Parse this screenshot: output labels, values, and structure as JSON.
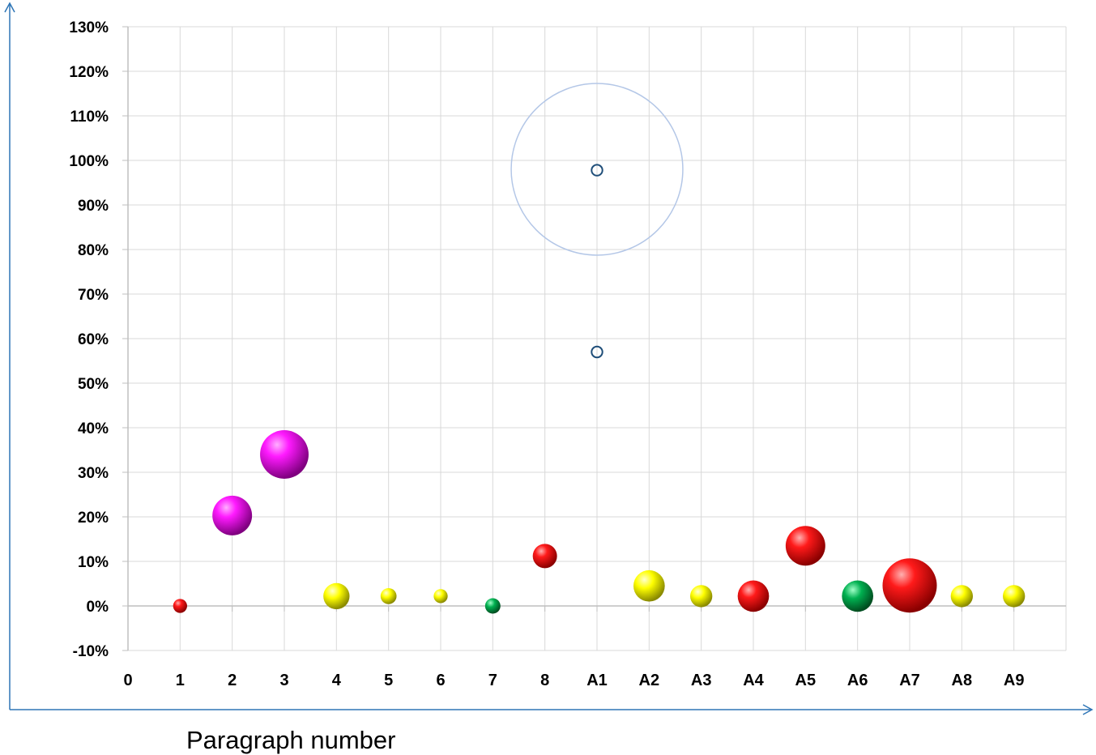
{
  "chart_data": {
    "type": "bubble",
    "xlabel": "Paragraph number",
    "ylabel": "",
    "x_tick_labels": [
      "0",
      "1",
      "2",
      "3",
      "4",
      "5",
      "6",
      "7",
      "8",
      "A1",
      "A2",
      "A3",
      "A4",
      "A5",
      "A6",
      "A7",
      "A8",
      "A9"
    ],
    "y_tick_labels": [
      "-10%",
      "0%",
      "10%",
      "20%",
      "30%",
      "40%",
      "50%",
      "60%",
      "70%",
      "80%",
      "90%",
      "100%",
      "110%",
      "120%",
      "130%"
    ],
    "ylim": [
      -10,
      130
    ],
    "y_unit": "%",
    "grid": true,
    "colors": {
      "red": "#e80000",
      "magenta": "#e000e0",
      "yellow": "#f2f200",
      "green": "#00a050",
      "outline": "#1f4e79",
      "faint_outline": "#b4c7e7",
      "axis_arrow": "#2e75b6",
      "grid": "#d9d9d9"
    },
    "points": [
      {
        "x": "1",
        "y": 0,
        "size": 1,
        "color": "red"
      },
      {
        "x": "2",
        "y": 20.3,
        "size": 8,
        "color": "magenta"
      },
      {
        "x": "3",
        "y": 34,
        "size": 12,
        "color": "magenta"
      },
      {
        "x": "4",
        "y": 2.2,
        "size": 3.5,
        "color": "yellow"
      },
      {
        "x": "5",
        "y": 2.2,
        "size": 1.3,
        "color": "yellow"
      },
      {
        "x": "6",
        "y": 2.2,
        "size": 1,
        "color": "yellow"
      },
      {
        "x": "7",
        "y": 0,
        "size": 1.2,
        "color": "green"
      },
      {
        "x": "8",
        "y": 11.2,
        "size": 3,
        "color": "red"
      },
      {
        "x": "A1",
        "y": 97.8,
        "size": 0.6,
        "color": "outline"
      },
      {
        "x": "A1",
        "y": 98,
        "size": 150,
        "color": "faint_outline"
      },
      {
        "x": "A1",
        "y": 57,
        "size": 0.6,
        "color": "outline"
      },
      {
        "x": "A2",
        "y": 4.5,
        "size": 5,
        "color": "yellow"
      },
      {
        "x": "A3",
        "y": 2.2,
        "size": 2.5,
        "color": "yellow"
      },
      {
        "x": "A4",
        "y": 2.2,
        "size": 5,
        "color": "red"
      },
      {
        "x": "A5",
        "y": 13.5,
        "size": 8,
        "color": "red"
      },
      {
        "x": "A6",
        "y": 2.2,
        "size": 5,
        "color": "green"
      },
      {
        "x": "A7",
        "y": 4.6,
        "size": 15,
        "color": "red"
      },
      {
        "x": "A8",
        "y": 2.2,
        "size": 2.5,
        "color": "yellow"
      },
      {
        "x": "A9",
        "y": 2.2,
        "size": 2.5,
        "color": "yellow"
      }
    ]
  }
}
